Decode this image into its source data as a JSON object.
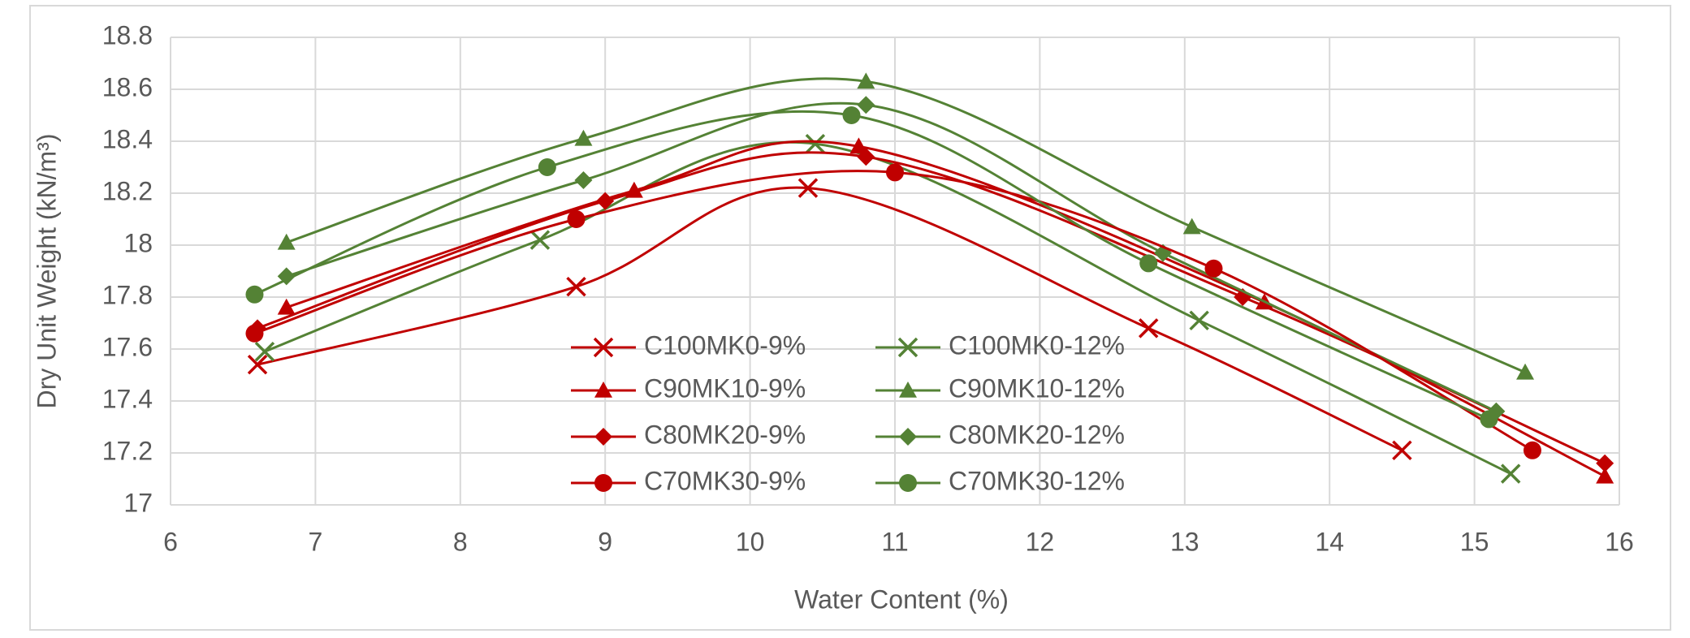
{
  "chart_data": {
    "type": "scatter-smooth",
    "x_label": "Water Content (%)",
    "y_label": "Dry Unit Weight (kN/m³)",
    "xlim": [
      6,
      16
    ],
    "xticks": [
      6,
      7,
      8,
      9,
      10,
      11,
      12,
      13,
      14,
      15,
      16
    ],
    "ylim": [
      17,
      18.8
    ],
    "yticks": [
      17,
      17.2,
      17.4,
      17.6,
      17.8,
      18,
      18.2,
      18.4,
      18.6,
      18.8
    ],
    "grid": true,
    "legend": "bottom-center",
    "series": [
      {
        "name": "C100MK0-9%",
        "color": "#c00000",
        "marker": "x",
        "x": [
          6.6,
          8.8,
          10.4,
          12.75,
          14.5
        ],
        "values": [
          17.54,
          17.84,
          18.22,
          17.68,
          17.21
        ]
      },
      {
        "name": "C100MK0-12%",
        "color": "#548235",
        "marker": "x",
        "x": [
          6.65,
          8.55,
          10.45,
          13.1,
          15.25
        ],
        "values": [
          17.59,
          18.02,
          18.39,
          17.71,
          17.12
        ]
      },
      {
        "name": "C90MK10-9%",
        "color": "#c00000",
        "marker": "triangle",
        "x": [
          6.8,
          9.2,
          10.75,
          13.55,
          15.9
        ],
        "values": [
          17.76,
          18.21,
          18.38,
          17.78,
          17.11
        ]
      },
      {
        "name": "C90MK10-12%",
        "color": "#548235",
        "marker": "triangle",
        "x": [
          6.8,
          8.85,
          10.8,
          13.05,
          15.35
        ],
        "values": [
          18.01,
          18.41,
          18.63,
          18.07,
          17.51
        ]
      },
      {
        "name": "C80MK20-9%",
        "color": "#c00000",
        "marker": "diamond",
        "x": [
          6.6,
          9.0,
          10.8,
          13.4,
          15.9
        ],
        "values": [
          17.68,
          18.17,
          18.34,
          17.8,
          17.16
        ]
      },
      {
        "name": "C80MK20-12%",
        "color": "#548235",
        "marker": "diamond",
        "x": [
          6.8,
          8.85,
          10.8,
          12.85,
          15.15
        ],
        "values": [
          17.88,
          18.25,
          18.54,
          17.97,
          17.36
        ]
      },
      {
        "name": "C70MK30-9%",
        "color": "#c00000",
        "marker": "circle",
        "x": [
          6.58,
          8.8,
          11.0,
          13.2,
          15.4
        ],
        "values": [
          17.66,
          18.1,
          18.28,
          17.91,
          17.21
        ]
      },
      {
        "name": "C70MK30-12%",
        "color": "#548235",
        "marker": "circle",
        "x": [
          6.58,
          8.6,
          10.7,
          12.75,
          15.1
        ],
        "values": [
          17.81,
          18.3,
          18.5,
          17.93,
          17.33
        ]
      }
    ]
  }
}
